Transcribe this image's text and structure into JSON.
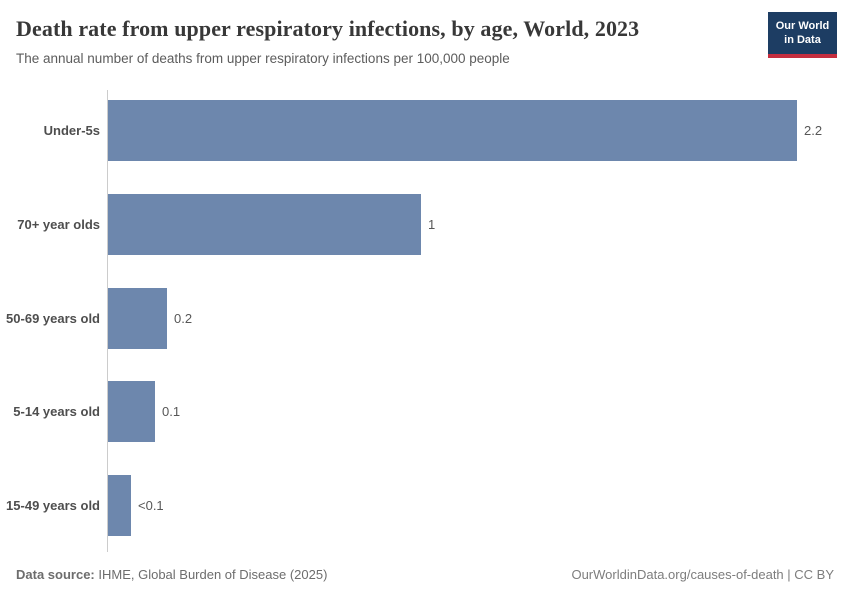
{
  "header": {
    "title": "Death rate from upper respiratory infections, by age, World, 2023",
    "subtitle": "The annual number of deaths from upper respiratory infections per 100,000 people"
  },
  "logo": {
    "line1": "Our World",
    "line2": "in Data",
    "bg_color": "#1d3d63",
    "accent_color": "#c52e3f"
  },
  "chart_data": {
    "type": "bar",
    "orientation": "horizontal",
    "title": "Death rate from upper respiratory infections, by age, World, 2023",
    "xlabel": "",
    "ylabel": "",
    "unit": "deaths from upper respiratory infections per 100,000 people",
    "xlim": [
      0,
      2.2
    ],
    "grid": false,
    "legend": "none",
    "bar_color": "#6d87ad",
    "categories": [
      "Under-5s",
      "70+ year olds",
      "50-69 years old",
      "5-14 years old",
      "15-49 years old"
    ],
    "values": [
      2.2,
      1.0,
      0.19,
      0.15,
      0.075
    ],
    "value_labels": [
      "2.2",
      "1",
      "0.2",
      "0.1",
      "<0.1"
    ]
  },
  "footer": {
    "source_label": "Data source:",
    "source_text": " IHME, Global Burden of Disease (2025)",
    "license_text": "OurWorldinData.org/causes-of-death | CC BY"
  }
}
